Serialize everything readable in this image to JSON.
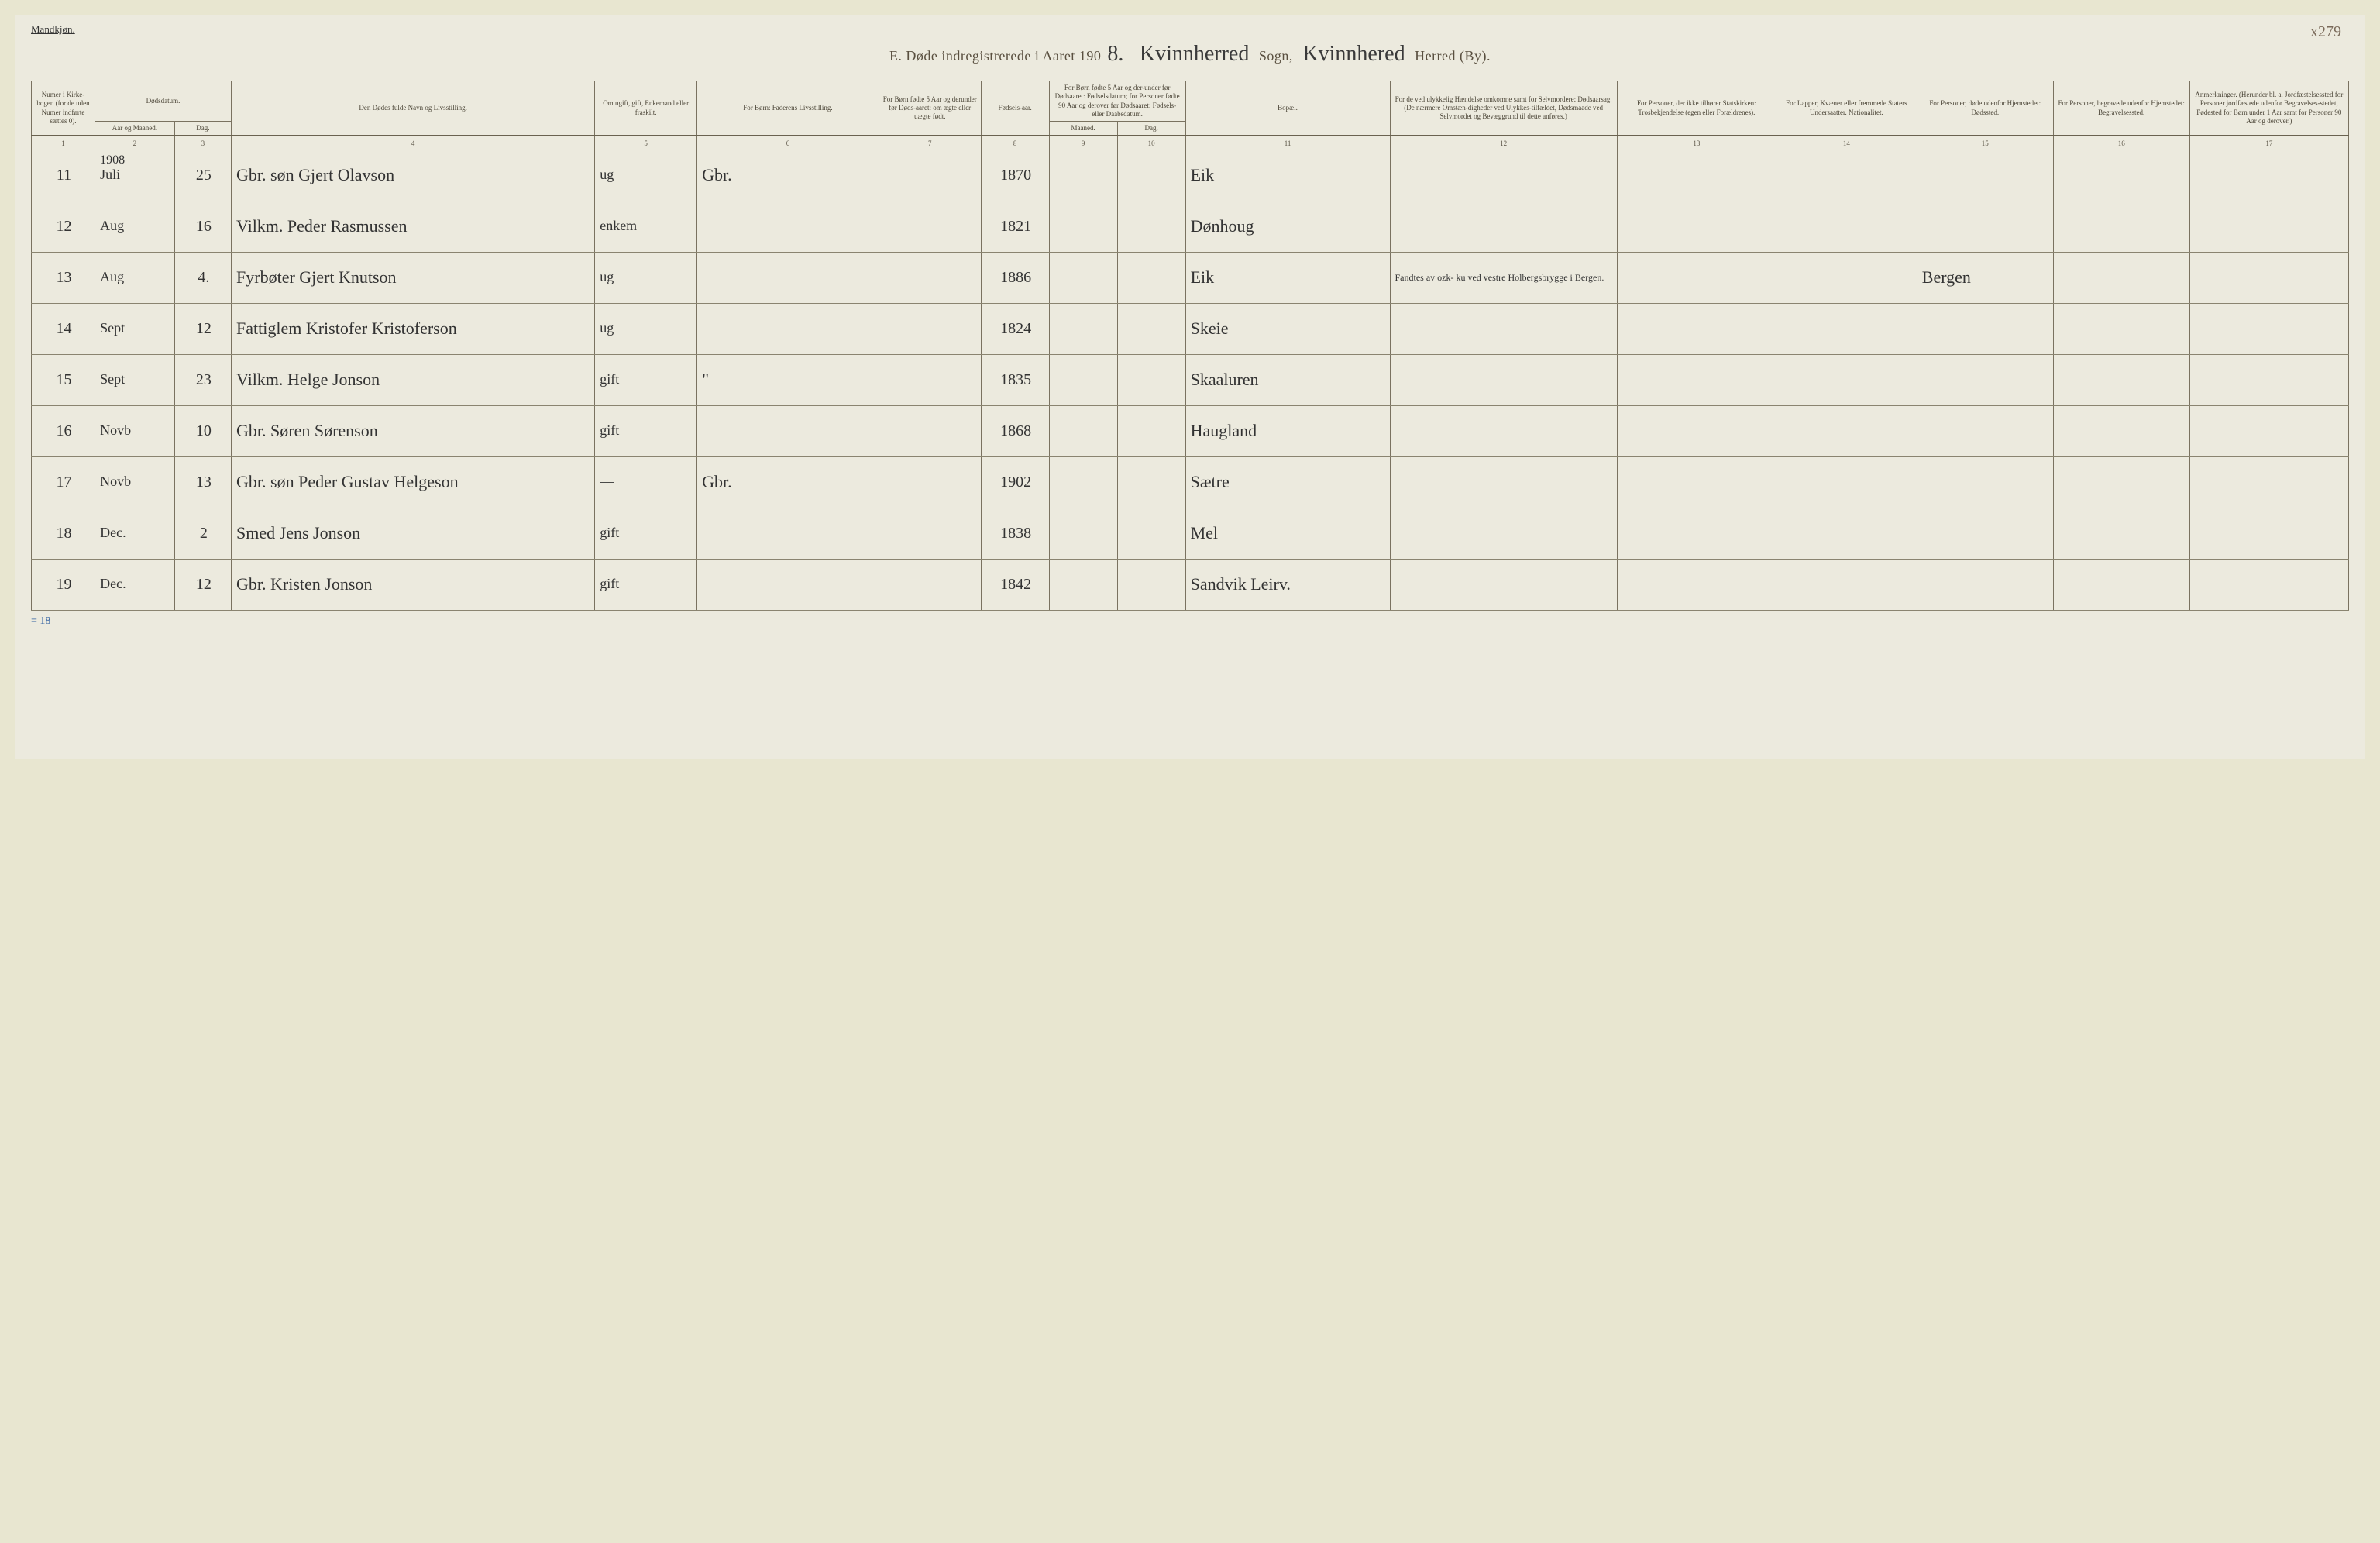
{
  "top_label": "Mandkjøn.",
  "page_number": "x279",
  "header": {
    "prefix": "E.  Døde indregistrerede i Aaret 190",
    "year_suffix": "8.",
    "sogn_script": "Kvinnherred",
    "sogn_label": "Sogn,",
    "herred_script": "Kvinnhered",
    "herred_label": "Herred (By)."
  },
  "columns": {
    "c1": "Numer i Kirke-bogen (for de uden Numer indførte sættes 0).",
    "c2a": "Dødsdatum.",
    "c2_sub1": "Aar og Maaned.",
    "c2_sub2": "Dag.",
    "c4": "Den Dødes fulde Navn og Livsstilling.",
    "c5": "Om ugift, gift, Enkemand eller fraskilt.",
    "c6": "For Børn: Faderens Livsstilling.",
    "c7": "For Børn fødte 5 Aar og derunder før Døds-aaret: om ægte eller uægte født.",
    "c8": "Fødsels-aar.",
    "c9a": "For Børn fødte 5 Aar og der-under før Dødsaaret: Fødselsdatum; for Personer fødte 90 Aar og derover før Dødsaaret: Fødsels- eller Daabsdatum.",
    "c9_sub1": "Maaned.",
    "c9_sub2": "Dag.",
    "c11": "Bopæl.",
    "c12": "For de ved ulykkelig Hændelse omkomne samt for Selvmordere: Dødsaarsag. (De nærmere Omstæn-digheder ved Ulykkes-tilfældet, Dødsmaade ved Selvmordet og Bevæggrund til dette anføres.)",
    "c13": "For Personer, der ikke tilhører Statskirken: Trosbekjendelse (egen eller Forældrenes).",
    "c14": "For Lapper, Kvæner eller fremmede Staters Undersaatter. Nationalitet.",
    "c15": "For Personer, døde udenfor Hjemstedet: Dødssted.",
    "c16": "For Personer, begravede udenfor Hjemstedet: Begravelsessted.",
    "c17": "Anmerkninger. (Herunder bl. a. Jordfæstelsessted for Personer jordfæstede udenfor Begravelses-stedet, Fødested for Børn under 1 Aar samt for Personer 90 Aar og derover.)"
  },
  "colnums": [
    "1",
    "2",
    "3",
    "4",
    "5",
    "6",
    "7",
    "8",
    "9",
    "10",
    "11",
    "12",
    "13",
    "14",
    "15",
    "16",
    "17"
  ],
  "year_over_col2": "1908",
  "rows": [
    {
      "n": "11",
      "mon": "Juli",
      "day": "25",
      "name": "Gbr. søn Gjert Olavson",
      "stat": "ug",
      "father": "Gbr.",
      "born": "1870",
      "place": "Eik",
      "note12": "",
      "c15": ""
    },
    {
      "n": "12",
      "mon": "Aug",
      "day": "16",
      "name": "Vilkm. Peder Rasmussen",
      "stat": "enkem",
      "father": "",
      "born": "1821",
      "place": "Dønhoug",
      "note12": "",
      "c15": ""
    },
    {
      "n": "13",
      "mon": "Aug",
      "day": "4.",
      "name": "Fyrbøter Gjert Knutson",
      "stat": "ug",
      "father": "",
      "born": "1886",
      "place": "Eik",
      "note12": "Fandtes av ozk- ku ved vestre Holbergsbrygge i Bergen.",
      "c15": "Bergen"
    },
    {
      "n": "14",
      "mon": "Sept",
      "day": "12",
      "name": "Fattiglem Kristofer Kristoferson",
      "stat": "ug",
      "father": "",
      "born": "1824",
      "place": "Skeie",
      "note12": "",
      "c15": ""
    },
    {
      "n": "15",
      "mon": "Sept",
      "day": "23",
      "name": "Vilkm. Helge Jonson",
      "stat": "gift",
      "father": "\"",
      "born": "1835",
      "place": "Skaaluren",
      "note12": "",
      "c15": ""
    },
    {
      "n": "16",
      "mon": "Novb",
      "day": "10",
      "name": "Gbr. Søren Sørenson",
      "stat": "gift",
      "father": "",
      "born": "1868",
      "place": "Haugland",
      "note12": "",
      "c15": ""
    },
    {
      "n": "17",
      "mon": "Novb",
      "day": "13",
      "name": "Gbr. søn Peder Gustav Helgeson",
      "stat": "—",
      "father": "Gbr.",
      "born": "1902",
      "place": "Sætre",
      "note12": "",
      "c15": ""
    },
    {
      "n": "18",
      "mon": "Dec.",
      "day": "2",
      "name": "Smed Jens Jonson",
      "stat": "gift",
      "father": "",
      "born": "1838",
      "place": "Mel",
      "note12": "",
      "c15": ""
    },
    {
      "n": "19",
      "mon": "Dec.",
      "day": "12",
      "name": "Gbr. Kristen Jonson",
      "stat": "gift",
      "father": "",
      "born": "1842",
      "place": "Sandvik Leirv.",
      "note12": "",
      "c15": ""
    }
  ],
  "footer_note": "= 18"
}
